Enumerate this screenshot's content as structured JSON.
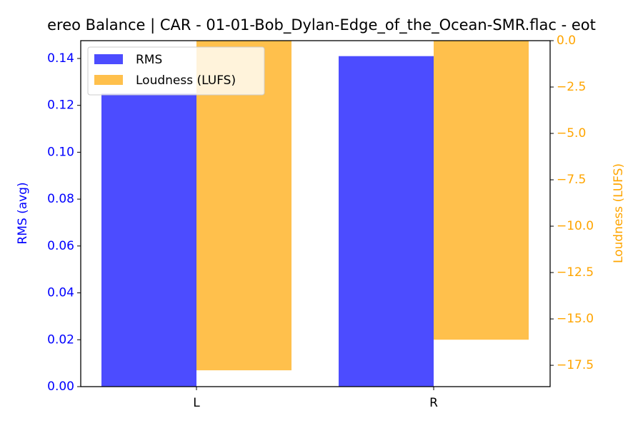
{
  "chart_data": {
    "type": "bar",
    "title": "ereo Balance | CAR - 01-01-Bob_Dylan-Edge_of_the_Ocean-SMR.flac - eot",
    "categories": [
      "L",
      "R"
    ],
    "ylabel": "RMS (avg)",
    "y2label": "Loudness (LUFS)",
    "series": [
      {
        "name": "RMS",
        "color": "#0000ff",
        "values": [
          0.125,
          0.141
        ]
      },
      {
        "name": "Loudness (LUFS)",
        "color": "#ffa500",
        "values": [
          -17.77,
          -16.12
        ],
        "axis": "y2"
      }
    ],
    "alpha": 0.7,
    "ylim": [
      0,
      0.1476
    ],
    "yticks": [
      {
        "value": 0,
        "label": "0.00"
      },
      {
        "value": 0.02,
        "label": "0.02"
      },
      {
        "value": 0.04,
        "label": "0.04"
      },
      {
        "value": 0.06,
        "label": "0.06"
      },
      {
        "value": 0.08,
        "label": "0.08"
      },
      {
        "value": 0.1,
        "label": "0.10"
      },
      {
        "value": 0.12,
        "label": "0.12"
      },
      {
        "value": 0.14,
        "label": "0.14"
      }
    ],
    "y2lim": [
      -18.65,
      0
    ],
    "y2ticks": [
      {
        "value": 0,
        "label": "0.0"
      },
      {
        "value": -2.5,
        "label": "−2.5"
      },
      {
        "value": -5,
        "label": "−5.0"
      },
      {
        "value": -7.5,
        "label": "−7.5"
      },
      {
        "value": -10,
        "label": "−10.0"
      },
      {
        "value": -12.5,
        "label": "−12.5"
      },
      {
        "value": -15,
        "label": "−15.0"
      },
      {
        "value": -17.5,
        "label": "−17.5"
      }
    ],
    "legend": "upper left"
  }
}
